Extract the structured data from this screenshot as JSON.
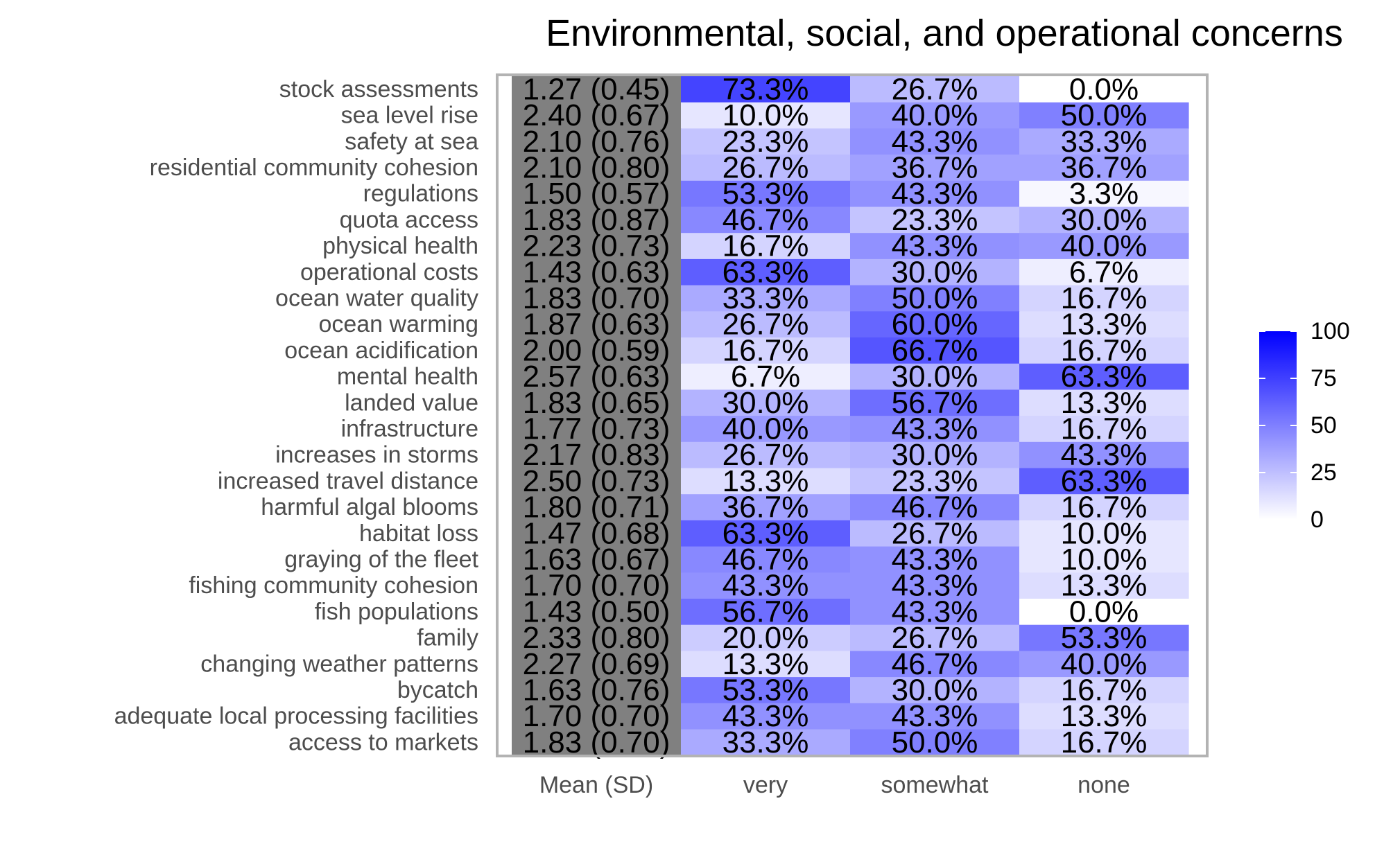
{
  "chart_data": {
    "type": "heatmap",
    "title": "Environmental, social, and operational concerns",
    "columns": [
      "Mean (SD)",
      "very",
      "somewhat",
      "none"
    ],
    "rows": [
      {
        "label": "stock assessments",
        "mean_sd": "1.27 (0.45)",
        "very": 73.3,
        "somewhat": 26.7,
        "none": 0.0
      },
      {
        "label": "sea level rise",
        "mean_sd": "2.40 (0.67)",
        "very": 10.0,
        "somewhat": 40.0,
        "none": 50.0
      },
      {
        "label": "safety at sea",
        "mean_sd": "2.10 (0.76)",
        "very": 23.3,
        "somewhat": 43.3,
        "none": 33.3
      },
      {
        "label": "residential community cohesion",
        "mean_sd": "2.10 (0.80)",
        "very": 26.7,
        "somewhat": 36.7,
        "none": 36.7
      },
      {
        "label": "regulations",
        "mean_sd": "1.50 (0.57)",
        "very": 53.3,
        "somewhat": 43.3,
        "none": 3.3
      },
      {
        "label": "quota access",
        "mean_sd": "1.83 (0.87)",
        "very": 46.7,
        "somewhat": 23.3,
        "none": 30.0
      },
      {
        "label": "physical health",
        "mean_sd": "2.23 (0.73)",
        "very": 16.7,
        "somewhat": 43.3,
        "none": 40.0
      },
      {
        "label": "operational costs",
        "mean_sd": "1.43 (0.63)",
        "very": 63.3,
        "somewhat": 30.0,
        "none": 6.7
      },
      {
        "label": "ocean water quality",
        "mean_sd": "1.83 (0.70)",
        "very": 33.3,
        "somewhat": 50.0,
        "none": 16.7
      },
      {
        "label": "ocean warming",
        "mean_sd": "1.87 (0.63)",
        "very": 26.7,
        "somewhat": 60.0,
        "none": 13.3
      },
      {
        "label": "ocean acidification",
        "mean_sd": "2.00 (0.59)",
        "very": 16.7,
        "somewhat": 66.7,
        "none": 16.7
      },
      {
        "label": "mental health",
        "mean_sd": "2.57 (0.63)",
        "very": 6.7,
        "somewhat": 30.0,
        "none": 63.3
      },
      {
        "label": "landed value",
        "mean_sd": "1.83 (0.65)",
        "very": 30.0,
        "somewhat": 56.7,
        "none": 13.3
      },
      {
        "label": "infrastructure",
        "mean_sd": "1.77 (0.73)",
        "very": 40.0,
        "somewhat": 43.3,
        "none": 16.7
      },
      {
        "label": "increases in storms",
        "mean_sd": "2.17 (0.83)",
        "very": 26.7,
        "somewhat": 30.0,
        "none": 43.3
      },
      {
        "label": "increased travel distance",
        "mean_sd": "2.50 (0.73)",
        "very": 13.3,
        "somewhat": 23.3,
        "none": 63.3
      },
      {
        "label": "harmful algal blooms",
        "mean_sd": "1.80 (0.71)",
        "very": 36.7,
        "somewhat": 46.7,
        "none": 16.7
      },
      {
        "label": "habitat loss",
        "mean_sd": "1.47 (0.68)",
        "very": 63.3,
        "somewhat": 26.7,
        "none": 10.0
      },
      {
        "label": "graying of the fleet",
        "mean_sd": "1.63 (0.67)",
        "very": 46.7,
        "somewhat": 43.3,
        "none": 10.0
      },
      {
        "label": "fishing community cohesion",
        "mean_sd": "1.70 (0.70)",
        "very": 43.3,
        "somewhat": 43.3,
        "none": 13.3
      },
      {
        "label": "fish populations",
        "mean_sd": "1.43 (0.50)",
        "very": 56.7,
        "somewhat": 43.3,
        "none": 0.0
      },
      {
        "label": "family",
        "mean_sd": "2.33 (0.80)",
        "very": 20.0,
        "somewhat": 26.7,
        "none": 53.3
      },
      {
        "label": "changing weather patterns",
        "mean_sd": "2.27 (0.69)",
        "very": 13.3,
        "somewhat": 46.7,
        "none": 40.0
      },
      {
        "label": "bycatch",
        "mean_sd": "1.63 (0.76)",
        "very": 53.3,
        "somewhat": 30.0,
        "none": 16.7
      },
      {
        "label": "adequate local processing facilities",
        "mean_sd": "1.70 (0.70)",
        "very": 43.3,
        "somewhat": 43.3,
        "none": 13.3
      },
      {
        "label": "access to markets",
        "mean_sd": "1.83 (0.70)",
        "very": 33.3,
        "somewhat": 50.0,
        "none": 16.7
      }
    ],
    "value_format": "percent",
    "color_scale": {
      "low": "#ffffff",
      "high": "#0000ff",
      "mean_column_fill": "#808080"
    },
    "legend": {
      "position": "right",
      "ticks": [
        0,
        25,
        50,
        75,
        100
      ],
      "range": [
        0,
        100
      ]
    }
  }
}
